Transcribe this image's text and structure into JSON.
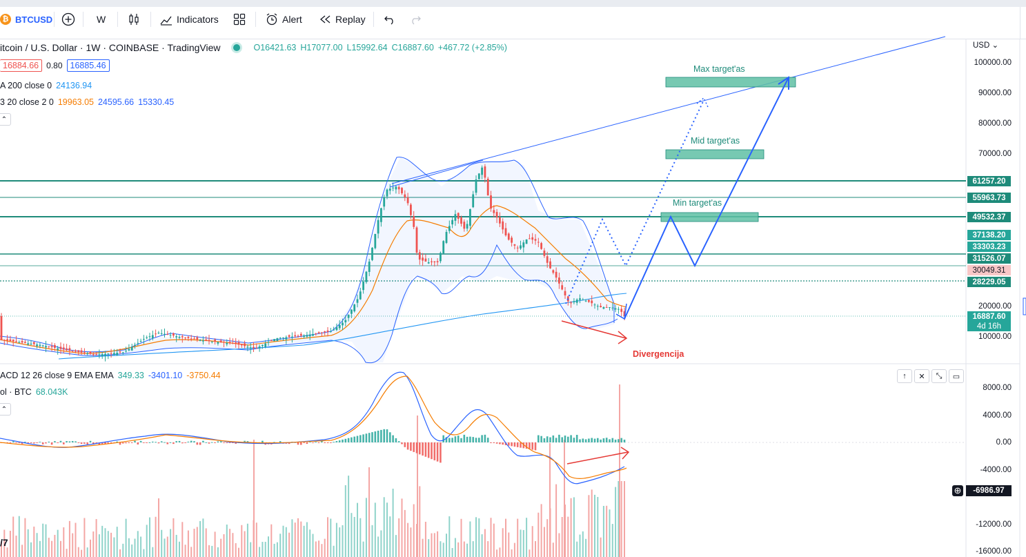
{
  "toolbar": {
    "symbol": "BTCUSD",
    "symbol_icon": "₿",
    "interval": "W",
    "indicators_label": "Indicators",
    "alert_label": "Alert",
    "replay_label": "Replay"
  },
  "legend": {
    "title": "itcoin / U.S. Dollar · 1W · COINBASE · TradingView",
    "open": "O16421.63",
    "high": "H17077.00",
    "low": "L15992.64",
    "close": "C16887.60",
    "change": "+467.72 (+2.85%)",
    "bid": "16884.66",
    "spread": "0.80",
    "ask": "16885.46",
    "ma_label": "A 200 close 0",
    "ma_value": "24136.94",
    "bb_label": "3 20 close 2 0",
    "bb_basis": "19963.05",
    "bb_upper": "24595.66",
    "bb_lower": "15330.45",
    "macd_label": "ACD 12 26 close 9 EMA EMA",
    "macd_hist": "349.33",
    "macd_line": "-3401.10",
    "macd_signal": "-3750.44",
    "vol_label": "ol · BTC",
    "vol_value": "68.043K"
  },
  "price_axis": {
    "currency": "USD",
    "labels": [
      "100000.00",
      "90000.00",
      "80000.00",
      "70000.00",
      "20000.00",
      "10000.00"
    ],
    "level_tags": [
      {
        "text": "61257.20",
        "color": "#1e8b7a"
      },
      {
        "text": "55963.73",
        "color": "#1e8b7a"
      },
      {
        "text": "49532.37",
        "color": "#1e8b7a"
      },
      {
        "text": "37138.20",
        "color": "#26a69a"
      },
      {
        "text": "33303.23",
        "color": "#26a69a"
      },
      {
        "text": "31526.07",
        "color": "#1e8b7a"
      },
      {
        "text": "30049.31",
        "color": "#f8c7c7"
      },
      {
        "text": "28229.05",
        "color": "#1e8b7a"
      },
      {
        "text": "16887.60",
        "color": "#26a69a"
      },
      {
        "text": "4d 16h",
        "color": "#26a69a"
      }
    ]
  },
  "macd_axis": {
    "labels": [
      "8000.00",
      "4000.00",
      "0.00",
      "-4000.00",
      "-12000.00",
      "-16000.00"
    ],
    "crosshair_value": "-6986.97"
  },
  "annotations": {
    "max_target": "Max target'as",
    "mid_target": "Mid target'as",
    "min_target": "Min target'as",
    "divergence": "Divergencija"
  },
  "colors": {
    "up": "#26a69a",
    "down": "#ef5350",
    "line_blue": "#2962ff",
    "bb_orange": "#f57c00",
    "target_fill": "#5fbfa5",
    "text_blue": "#2962ff",
    "text_orange": "#f57c00",
    "text_teal": "#1e8b7a",
    "text_red": "#e53935"
  }
}
